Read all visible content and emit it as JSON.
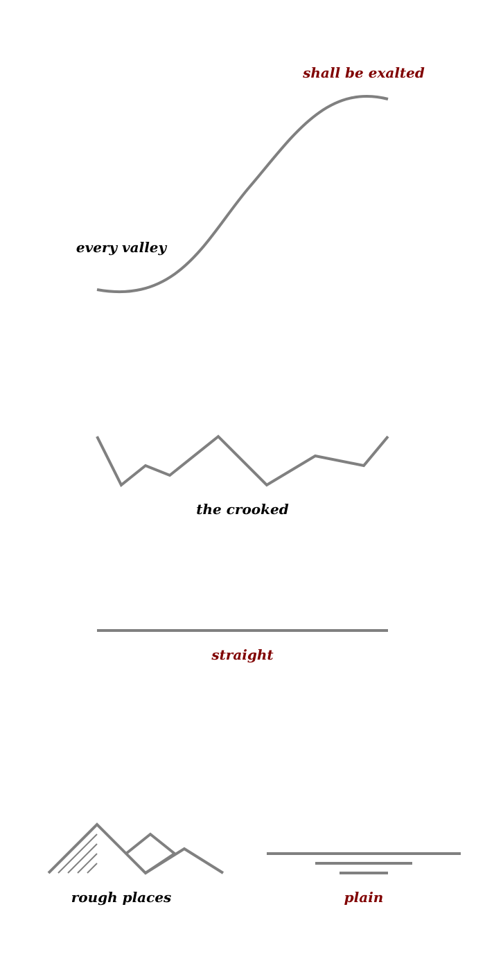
{
  "colors": {
    "line": "#808080",
    "label_dark": "#000000",
    "label_accent": "#800000"
  },
  "labels": {
    "exalted": "shall be exalted",
    "valley": "every valley",
    "crooked": "the crooked",
    "straight": "straight",
    "rough": "rough places",
    "plain": "plain"
  }
}
